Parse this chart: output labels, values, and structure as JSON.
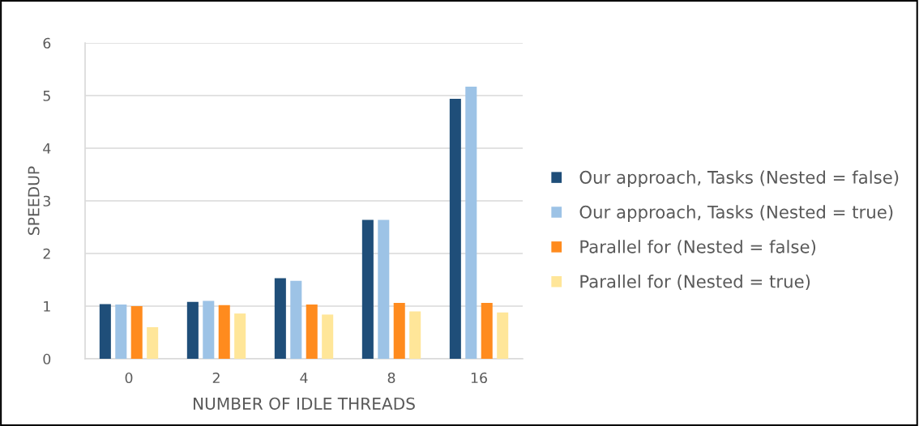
{
  "chart_data": {
    "type": "bar",
    "xlabel": "NUMBER OF IDLE THREADS",
    "ylabel": "SPEEDUP",
    "categories": [
      "0",
      "2",
      "4",
      "8",
      "16"
    ],
    "series": [
      {
        "name": "Our approach, Tasks (Nested = false)",
        "color": "#1f4e79",
        "values": [
          1.04,
          1.08,
          1.53,
          2.64,
          4.94
        ]
      },
      {
        "name": "Our approach, Tasks (Nested = true)",
        "color": "#9dc3e6",
        "values": [
          1.03,
          1.1,
          1.48,
          2.64,
          5.17
        ]
      },
      {
        "name": "Parallel for (Nested = false)",
        "color": "#ff8b1e",
        "values": [
          1.0,
          1.02,
          1.03,
          1.06,
          1.06
        ]
      },
      {
        "name": "Parallel for (Nested = true)",
        "color": "#ffe699",
        "values": [
          0.6,
          0.86,
          0.84,
          0.9,
          0.88
        ]
      }
    ],
    "ylim": [
      0,
      6
    ],
    "yticks": [
      0,
      1,
      2,
      3,
      4,
      5,
      6
    ],
    "grid": "y",
    "legend": "right"
  }
}
